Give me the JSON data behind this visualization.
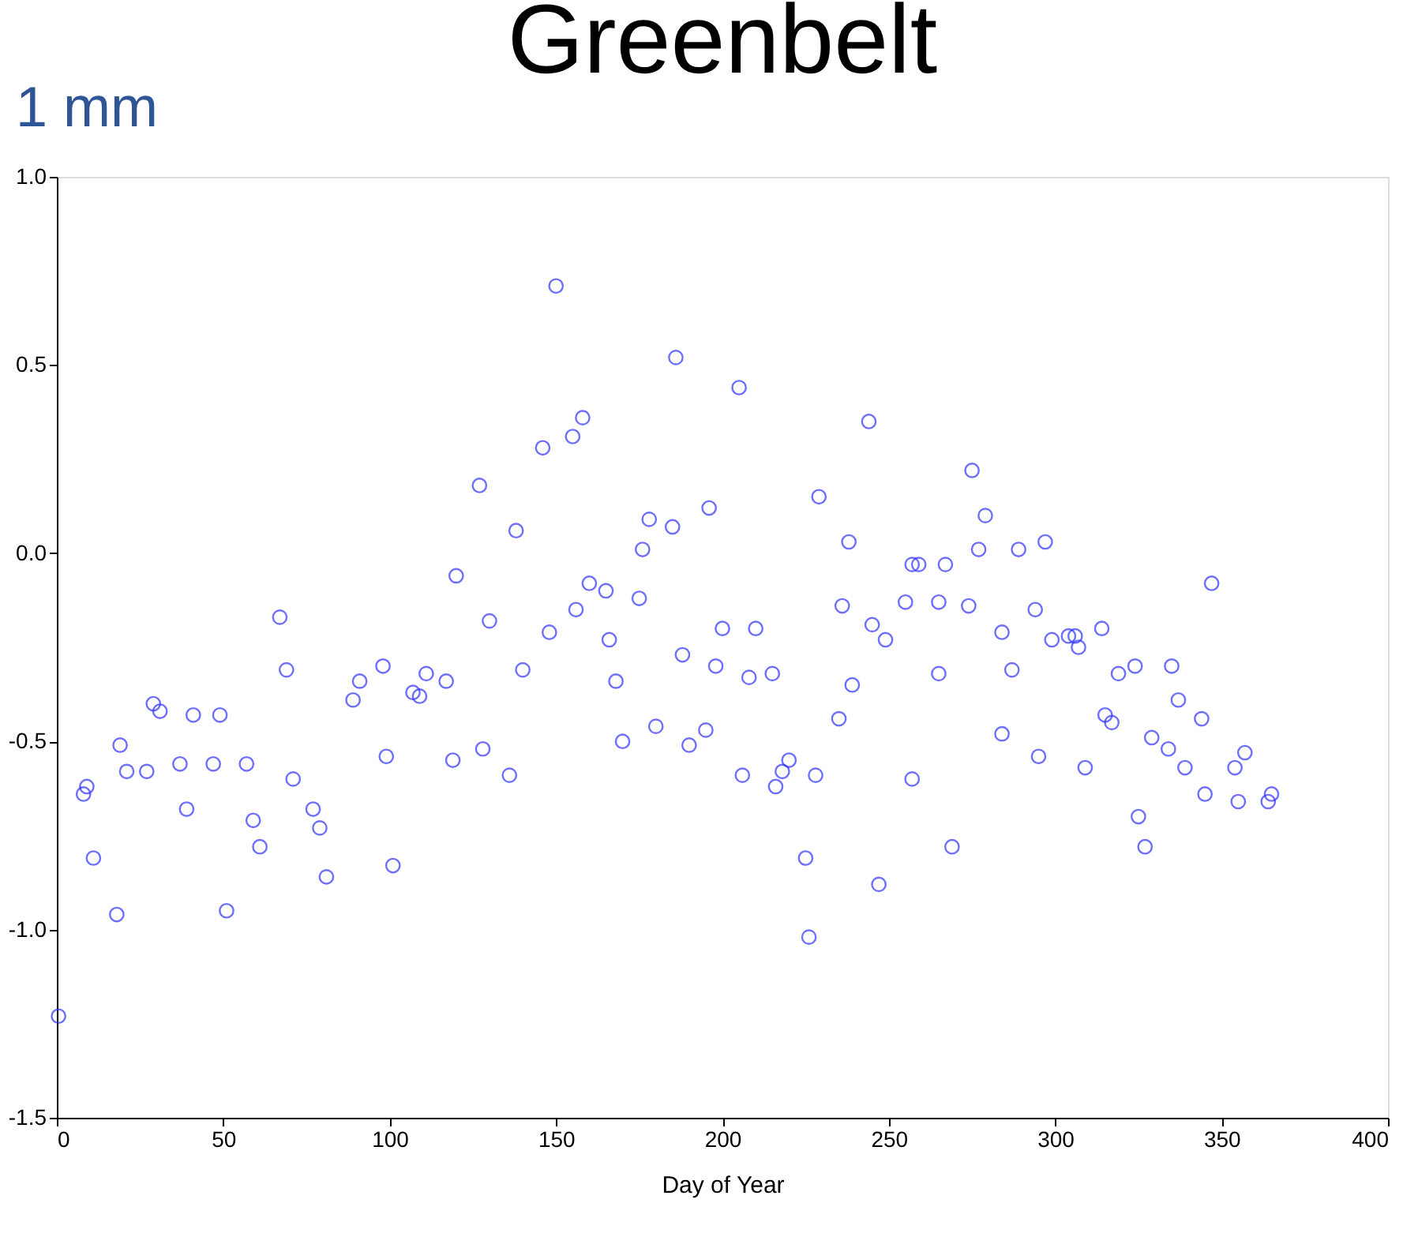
{
  "chart_data": {
    "type": "scatter",
    "title": "Greenbelt",
    "xlabel": "Day of Year",
    "annotations": [
      "1 mm"
    ],
    "xlim": [
      0,
      400
    ],
    "xticks": [
      0,
      50,
      100,
      150,
      200,
      250,
      300,
      350,
      400
    ],
    "ylim": [
      -1.5,
      1.0
    ],
    "yticks": [
      {
        "value": -1.5,
        "label": "-1.5"
      },
      {
        "value": -1.0,
        "label": "-1.0"
      },
      {
        "value": -0.5,
        "label": "-0.5"
      },
      {
        "value": 0,
        "label": "0.0"
      },
      {
        "value": 0.5,
        "label": "0.5"
      },
      {
        "value": 1.0,
        "label": "1.0"
      }
    ],
    "grid": false,
    "marker": "circle",
    "series": [
      {
        "color": "#3333ff",
        "x": [
          0.5,
          8,
          9,
          11,
          18,
          19,
          21,
          27,
          29,
          31,
          37,
          39,
          41,
          47,
          49,
          51,
          57,
          59,
          61,
          67,
          69,
          71,
          77,
          79,
          81,
          89,
          91,
          98,
          99,
          101,
          107,
          109,
          111,
          117,
          119,
          120,
          127,
          128,
          130,
          136,
          138,
          140,
          146,
          148,
          150,
          155,
          156,
          158,
          160,
          165,
          166,
          168,
          170,
          175,
          176,
          178,
          180,
          185,
          186,
          188,
          190,
          195,
          196,
          198,
          200,
          205,
          206,
          208,
          210,
          215,
          216,
          218,
          220,
          225,
          226,
          228,
          229,
          235,
          236,
          238,
          239,
          244,
          245,
          247,
          249,
          255,
          257,
          257,
          259,
          265,
          265,
          267,
          269,
          274,
          275,
          277,
          279,
          284,
          284,
          287,
          289,
          294,
          295,
          297,
          299,
          304,
          306,
          307,
          309,
          314,
          315,
          317,
          319,
          324,
          325,
          327,
          329,
          334,
          335,
          337,
          339,
          344,
          345,
          347,
          354,
          355,
          357,
          364,
          365
        ],
        "values": [
          -1.23,
          -0.64,
          -0.62,
          -0.81,
          -0.96,
          -0.51,
          -0.58,
          -0.58,
          -0.4,
          -0.42,
          -0.56,
          -0.68,
          -0.43,
          -0.56,
          -0.43,
          -0.95,
          -0.56,
          -0.71,
          -0.78,
          -0.17,
          -0.31,
          -0.6,
          -0.68,
          -0.73,
          -0.86,
          -0.39,
          -0.34,
          -0.3,
          -0.54,
          -0.83,
          -0.37,
          -0.38,
          -0.32,
          -0.34,
          -0.55,
          -0.06,
          0.18,
          -0.52,
          -0.18,
          -0.59,
          0.06,
          -0.31,
          0.28,
          -0.21,
          0.71,
          0.31,
          -0.15,
          0.36,
          -0.08,
          -0.1,
          -0.23,
          -0.34,
          -0.5,
          -0.12,
          0.01,
          0.09,
          -0.46,
          0.07,
          0.52,
          -0.27,
          -0.51,
          -0.47,
          0.12,
          -0.3,
          -0.2,
          0.44,
          -0.59,
          -0.33,
          -0.2,
          -0.32,
          -0.62,
          -0.58,
          -0.55,
          -0.81,
          -1.02,
          -0.59,
          0.15,
          -0.44,
          -0.14,
          0.03,
          -0.35,
          0.35,
          -0.19,
          -0.88,
          -0.23,
          -0.13,
          -0.03,
          -0.6,
          -0.03,
          -0.13,
          -0.32,
          -0.03,
          -0.78,
          -0.14,
          0.22,
          0.01,
          0.1,
          -0.21,
          -0.48,
          -0.31,
          0.01,
          -0.15,
          -0.54,
          0.03,
          -0.23,
          -0.22,
          -0.22,
          -0.25,
          -0.57,
          -0.2,
          -0.43,
          -0.45,
          -0.32,
          -0.3,
          -0.7,
          -0.78,
          -0.49,
          -0.52,
          -0.3,
          -0.39,
          -0.57,
          -0.44,
          -0.64,
          -0.08,
          -0.57,
          -0.66,
          -0.53,
          -0.66,
          -0.64
        ]
      }
    ]
  }
}
